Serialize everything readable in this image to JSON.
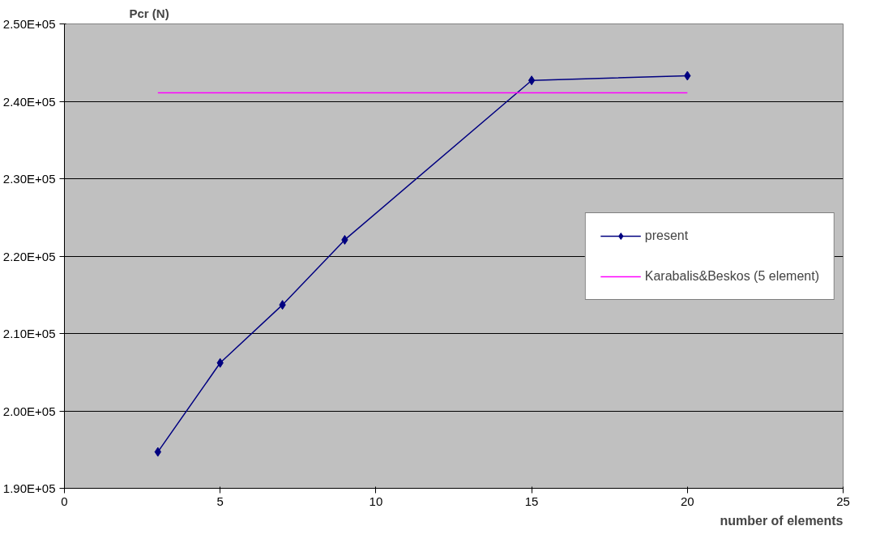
{
  "chart_data": {
    "type": "line",
    "xlabel": "number of elements",
    "ylabel": "Pcr (N)",
    "xlim": [
      0,
      25
    ],
    "xticks": [
      0,
      5,
      10,
      15,
      20,
      25
    ],
    "ylim": [
      190000,
      250000
    ],
    "yticks": [
      {
        "value": 190000,
        "label": "1.90E+05"
      },
      {
        "value": 200000,
        "label": "2.00E+05"
      },
      {
        "value": 210000,
        "label": "2.10E+05"
      },
      {
        "value": 220000,
        "label": "2.20E+05"
      },
      {
        "value": 230000,
        "label": "2.30E+05"
      },
      {
        "value": 240000,
        "label": "2.40E+05"
      },
      {
        "value": 250000,
        "label": "2.50E+05"
      }
    ],
    "series": [
      {
        "name": "present",
        "color": "#000080",
        "x": [
          3,
          5,
          7,
          9,
          15,
          20
        ],
        "values": [
          194700,
          206200,
          213700,
          222100,
          242700,
          243300
        ],
        "marker": "diamond"
      },
      {
        "name": "Karabalis&Beskos (5 element)",
        "color": "#ff00ff",
        "x": [
          3,
          20
        ],
        "values": [
          241100,
          241100
        ],
        "marker": "none"
      }
    ],
    "grid": "y",
    "legend": "right",
    "line_style": "solid"
  }
}
